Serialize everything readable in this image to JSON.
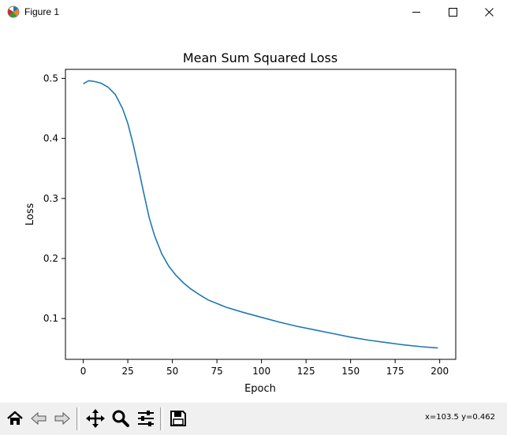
{
  "window": {
    "title": "Figure 1"
  },
  "icons": {
    "app": "matplotlib-icon",
    "minimize": "minimize-icon",
    "maximize": "maximize-icon",
    "close": "close-icon"
  },
  "toolbar": {
    "buttons": [
      "home-icon",
      "back-arrow-icon",
      "forward-arrow-icon",
      "pan-icon",
      "zoom-icon",
      "configure-subplots-icon",
      "save-icon"
    ],
    "coords": "x=103.5 y=0.462"
  },
  "chart_data": {
    "type": "line",
    "title": "Mean Sum Squared Loss",
    "xlabel": "Epoch",
    "ylabel": "Loss",
    "xlim": [
      -10,
      209
    ],
    "ylim": [
      0.032,
      0.515
    ],
    "xticks": [
      0,
      25,
      50,
      75,
      100,
      125,
      150,
      175,
      200
    ],
    "yticks": [
      0.1,
      0.2,
      0.3,
      0.4,
      0.5
    ],
    "grid": false,
    "line_color": "#1f77b4",
    "series": [
      {
        "x": [
          0,
          3,
          6,
          10,
          14,
          18,
          22,
          25,
          28,
          31,
          34,
          37,
          40,
          44,
          48,
          52,
          56,
          60,
          65,
          70,
          75,
          80,
          90,
          100,
          110,
          120,
          130,
          140,
          150,
          160,
          170,
          180,
          190,
          199
        ],
        "y": [
          0.491,
          0.496,
          0.495,
          0.492,
          0.485,
          0.473,
          0.45,
          0.425,
          0.39,
          0.35,
          0.308,
          0.268,
          0.238,
          0.208,
          0.187,
          0.172,
          0.16,
          0.15,
          0.14,
          0.131,
          0.125,
          0.119,
          0.11,
          0.102,
          0.094,
          0.087,
          0.081,
          0.075,
          0.069,
          0.064,
          0.06,
          0.056,
          0.053,
          0.051
        ]
      }
    ]
  }
}
